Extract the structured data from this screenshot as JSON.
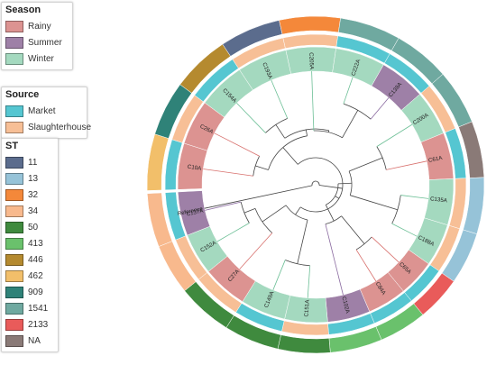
{
  "colors": {
    "season": {
      "Rainy": "#dc9391",
      "Summer": "#9e80a7",
      "Winter": "#a4d9bf"
    },
    "source": {
      "Market": "#55c6d1",
      "Slaughterhouse": "#f7bf96"
    },
    "st": {
      "11": "#5b6c8d",
      "13": "#96c3d8",
      "32": "#f4883a",
      "34": "#f8b98d",
      "50": "#3f8a3e",
      "413": "#6ac16c",
      "446": "#b58a2f",
      "462": "#f2bf6a",
      "909": "#2f8278",
      "1541": "#6fa9a0",
      "2133": "#e95b5a",
      "NA": "#8a7a77"
    }
  },
  "legends": {
    "season": {
      "title": "Season",
      "items": [
        {
          "label": "Rainy",
          "color": "#dc9391"
        },
        {
          "label": "Summer",
          "color": "#9e80a7"
        },
        {
          "label": "Winter",
          "color": "#a4d9bf"
        }
      ]
    },
    "source": {
      "title": "Source",
      "items": [
        {
          "label": "Market",
          "color": "#55c6d1"
        },
        {
          "label": "Slaughterhouse",
          "color": "#f7bf96"
        }
      ]
    },
    "st": {
      "title": "ST",
      "items": [
        {
          "label": "11",
          "color": "#5b6c8d"
        },
        {
          "label": "13",
          "color": "#96c3d8"
        },
        {
          "label": "32",
          "color": "#f4883a"
        },
        {
          "label": "34",
          "color": "#f8b98d"
        },
        {
          "label": "50",
          "color": "#3f8a3e"
        },
        {
          "label": "413",
          "color": "#6ac16c"
        },
        {
          "label": "446",
          "color": "#b58a2f"
        },
        {
          "label": "462",
          "color": "#f2bf6a"
        },
        {
          "label": "909",
          "color": "#2f8278"
        },
        {
          "label": "1541",
          "color": "#6fa9a0"
        },
        {
          "label": "2133",
          "color": "#e95b5a"
        },
        {
          "label": "NA",
          "color": "#8a7a77"
        }
      ]
    }
  },
  "leaves": [
    {
      "label": "Reference",
      "season": null,
      "source": null,
      "st": null
    },
    {
      "label": "C10A",
      "season": "Rainy",
      "source": "Market",
      "st": "462"
    },
    {
      "label": "C26A",
      "season": "Rainy",
      "source": "Slaughterhouse",
      "st": "909"
    },
    {
      "label": "C154A",
      "season": "Winter",
      "source": "Market",
      "st": "446"
    },
    {
      "label": "C193A",
      "season": "Winter",
      "source": "Slaughterhouse",
      "st": "11"
    },
    {
      "label": "C205A",
      "season": "Winter",
      "source": "Slaughterhouse",
      "st": "32"
    },
    {
      "label": "C222A",
      "season": "Winter",
      "source": "Market",
      "st": "1541"
    },
    {
      "label": "C138A",
      "season": "Summer",
      "source": "Market",
      "st": "1541"
    },
    {
      "label": "C200A",
      "season": "Winter",
      "source": "Slaughterhouse",
      "st": "1541"
    },
    {
      "label": "C61A",
      "season": "Rainy",
      "source": "Market",
      "st": "NA"
    },
    {
      "label": "C135A",
      "season": "Winter",
      "source": "Slaughterhouse",
      "st": "13"
    },
    {
      "label": "C188A",
      "season": "Winter",
      "source": "Slaughterhouse",
      "st": "13"
    },
    {
      "label": "C65A",
      "season": "Rainy",
      "source": "Market",
      "st": "2133"
    },
    {
      "label": "C84A",
      "season": "Rainy",
      "source": "Market",
      "st": "413"
    },
    {
      "label": "C102A",
      "season": "Summer",
      "source": "Market",
      "st": "413"
    },
    {
      "label": "C151A",
      "season": "Winter",
      "source": "Slaughterhouse",
      "st": "50"
    },
    {
      "label": "C149A",
      "season": "Winter",
      "source": "Market",
      "st": "50"
    },
    {
      "label": "C27A",
      "season": "Rainy",
      "source": "Slaughterhouse",
      "st": "50"
    },
    {
      "label": "C152A",
      "season": "Winter",
      "source": "Slaughterhouse",
      "st": "34"
    },
    {
      "label": "C137A",
      "season": "Summer",
      "source": "Market",
      "st": "34"
    }
  ]
}
